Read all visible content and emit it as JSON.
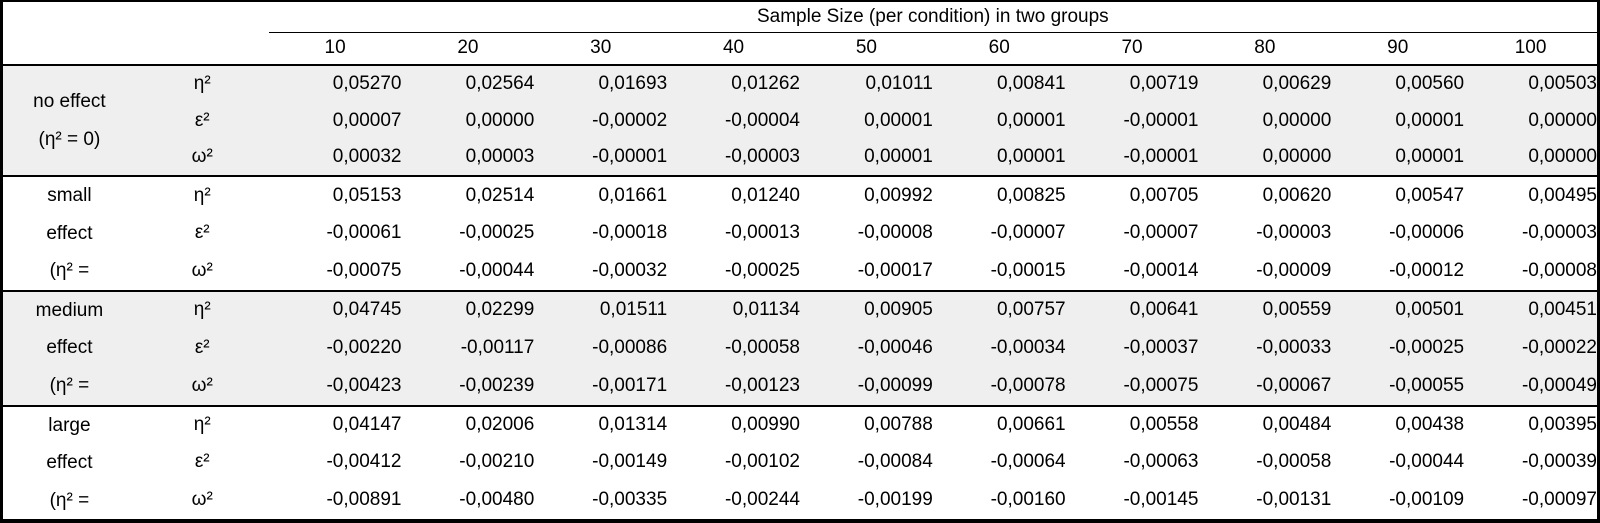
{
  "table": {
    "title": "Sample Size (per condition) in two groups",
    "columns": [
      "10",
      "20",
      "30",
      "40",
      "50",
      "60",
      "70",
      "80",
      "90",
      "100"
    ],
    "groups": [
      {
        "id": "no-effect",
        "label_lines": [
          "no effect",
          "(η² = 0)"
        ],
        "rows": [
          {
            "key": "eta2",
            "symbol": "η²",
            "values": [
              "0,05270",
              "0,02564",
              "0,01693",
              "0,01262",
              "0,01011",
              "0,00841",
              "0,00719",
              "0,00629",
              "0,00560",
              "0,00503"
            ]
          },
          {
            "key": "epsilon2",
            "symbol": "ε²",
            "values": [
              "0,00007",
              "0,00000",
              "-0,00002",
              "-0,00004",
              "0,00001",
              "0,00001",
              "-0,00001",
              "0,00000",
              "0,00001",
              "0,00000"
            ]
          },
          {
            "key": "omega2",
            "symbol": "ω²",
            "values": [
              "0,00032",
              "0,00003",
              "-0,00001",
              "-0,00003",
              "0,00001",
              "0,00001",
              "-0,00001",
              "0,00000",
              "0,00001",
              "0,00000"
            ]
          }
        ]
      },
      {
        "id": "small-effect",
        "label_lines": [
          "small",
          "effect",
          "(η² ="
        ],
        "rows": [
          {
            "key": "eta2",
            "symbol": "η²",
            "values": [
              "0,05153",
              "0,02514",
              "0,01661",
              "0,01240",
              "0,00992",
              "0,00825",
              "0,00705",
              "0,00620",
              "0,00547",
              "0,00495"
            ]
          },
          {
            "key": "epsilon2",
            "symbol": "ε²",
            "values": [
              "-0,00061",
              "-0,00025",
              "-0,00018",
              "-0,00013",
              "-0,00008",
              "-0,00007",
              "-0,00007",
              "-0,00003",
              "-0,00006",
              "-0,00003"
            ]
          },
          {
            "key": "omega2",
            "symbol": "ω²",
            "values": [
              "-0,00075",
              "-0,00044",
              "-0,00032",
              "-0,00025",
              "-0,00017",
              "-0,00015",
              "-0,00014",
              "-0,00009",
              "-0,00012",
              "-0,00008"
            ]
          }
        ]
      },
      {
        "id": "medium-effect",
        "label_lines": [
          "medium",
          "effect",
          "(η² ="
        ],
        "rows": [
          {
            "key": "eta2",
            "symbol": "η²",
            "values": [
              "0,04745",
              "0,02299",
              "0,01511",
              "0,01134",
              "0,00905",
              "0,00757",
              "0,00641",
              "0,00559",
              "0,00501",
              "0,00451"
            ]
          },
          {
            "key": "epsilon2",
            "symbol": "ε²",
            "values": [
              "-0,00220",
              "-0,00117",
              "-0,00086",
              "-0,00058",
              "-0,00046",
              "-0,00034",
              "-0,00037",
              "-0,00033",
              "-0,00025",
              "-0,00022"
            ]
          },
          {
            "key": "omega2",
            "symbol": "ω²",
            "values": [
              "-0,00423",
              "-0,00239",
              "-0,00171",
              "-0,00123",
              "-0,00099",
              "-0,00078",
              "-0,00075",
              "-0,00067",
              "-0,00055",
              "-0,00049"
            ]
          }
        ]
      },
      {
        "id": "large-effect",
        "label_lines": [
          "large",
          "effect",
          "(η² ="
        ],
        "rows": [
          {
            "key": "eta2",
            "symbol": "η²",
            "values": [
              "0,04147",
              "0,02006",
              "0,01314",
              "0,00990",
              "0,00788",
              "0,00661",
              "0,00558",
              "0,00484",
              "0,00438",
              "0,00395"
            ]
          },
          {
            "key": "epsilon2",
            "symbol": "ε²",
            "values": [
              "-0,00412",
              "-0,00210",
              "-0,00149",
              "-0,00102",
              "-0,00084",
              "-0,00064",
              "-0,00063",
              "-0,00058",
              "-0,00044",
              "-0,00039"
            ]
          },
          {
            "key": "omega2",
            "symbol": "ω²",
            "values": [
              "-0,00891",
              "-0,00480",
              "-0,00335",
              "-0,00244",
              "-0,00199",
              "-0,00160",
              "-0,00145",
              "-0,00131",
              "-0,00109",
              "-0,00097"
            ]
          }
        ]
      }
    ]
  },
  "colors": {
    "band": "#efefef",
    "border": "#000000",
    "text": "#000000"
  },
  "chart_data": {
    "type": "table",
    "title": "Sample Size (per condition) in two groups",
    "sample_sizes": [
      10,
      20,
      30,
      40,
      50,
      60,
      70,
      80,
      90,
      100
    ],
    "estimators": [
      "η²",
      "ε²",
      "ω²"
    ],
    "conditions": [
      {
        "condition": "no effect (η² = 0)",
        "eta2": [
          0.0527,
          0.02564,
          0.01693,
          0.01262,
          0.01011,
          0.00841,
          0.00719,
          0.00629,
          0.0056,
          0.00503
        ],
        "epsilon2": [
          7e-05,
          0.0,
          -2e-05,
          -4e-05,
          1e-05,
          1e-05,
          -1e-05,
          0.0,
          1e-05,
          0.0
        ],
        "omega2": [
          0.00032,
          3e-05,
          -1e-05,
          -3e-05,
          1e-05,
          1e-05,
          -1e-05,
          0.0,
          1e-05,
          0.0
        ]
      },
      {
        "condition": "small effect (η² =",
        "eta2": [
          0.05153,
          0.02514,
          0.01661,
          0.0124,
          0.00992,
          0.00825,
          0.00705,
          0.0062,
          0.00547,
          0.00495
        ],
        "epsilon2": [
          -0.00061,
          -0.00025,
          -0.00018,
          -0.00013,
          -8e-05,
          -7e-05,
          -7e-05,
          -3e-05,
          -6e-05,
          -3e-05
        ],
        "omega2": [
          -0.00075,
          -0.00044,
          -0.00032,
          -0.00025,
          -0.00017,
          -0.00015,
          -0.00014,
          -9e-05,
          -0.00012,
          -8e-05
        ]
      },
      {
        "condition": "medium effect (η² =",
        "eta2": [
          0.04745,
          0.02299,
          0.01511,
          0.01134,
          0.00905,
          0.00757,
          0.00641,
          0.00559,
          0.00501,
          0.00451
        ],
        "epsilon2": [
          -0.0022,
          -0.00117,
          -0.00086,
          -0.00058,
          -0.00046,
          -0.00034,
          -0.00037,
          -0.00033,
          -0.00025,
          -0.00022
        ],
        "omega2": [
          -0.00423,
          -0.00239,
          -0.00171,
          -0.00123,
          -0.00099,
          -0.00078,
          -0.00075,
          -0.00067,
          -0.00055,
          -0.00049
        ]
      },
      {
        "condition": "large effect (η² =",
        "eta2": [
          0.04147,
          0.02006,
          0.01314,
          0.0099,
          0.00788,
          0.00661,
          0.00558,
          0.00484,
          0.00438,
          0.00395
        ],
        "epsilon2": [
          -0.00412,
          -0.0021,
          -0.00149,
          -0.00102,
          -0.00084,
          -0.00064,
          -0.00063,
          -0.00058,
          -0.00044,
          -0.00039
        ],
        "omega2": [
          -0.00891,
          -0.0048,
          -0.00335,
          -0.00244,
          -0.00199,
          -0.0016,
          -0.00145,
          -0.00131,
          -0.00109,
          -0.00097
        ]
      }
    ]
  }
}
